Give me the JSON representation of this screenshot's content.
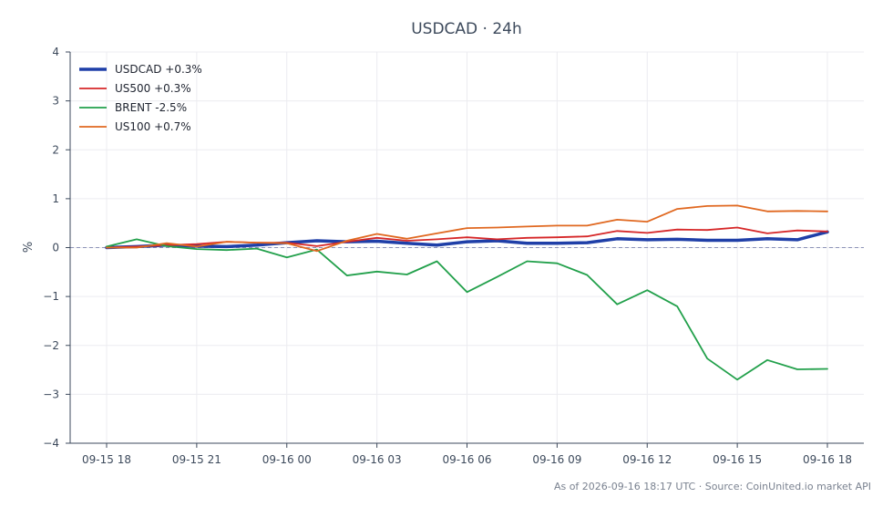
{
  "chart_data": {
    "type": "line",
    "title": "USDCAD · 24h",
    "ylabel": "%",
    "xlabel": "",
    "ylim": [
      -4,
      4
    ],
    "yticks": [
      4,
      3,
      2,
      1,
      0,
      -1,
      -2,
      -3,
      -4
    ],
    "ytick_labels": [
      "4",
      "3",
      "2",
      "1",
      "0",
      "−1",
      "−2",
      "−3",
      "−4"
    ],
    "x": [
      "09-15 18:00",
      "09-15 19:00",
      "09-15 20:00",
      "09-15 21:00",
      "09-15 22:00",
      "09-15 23:00",
      "09-16 00:00",
      "09-16 01:00",
      "09-16 02:00",
      "09-16 03:00",
      "09-16 04:00",
      "09-16 05:00",
      "09-16 06:00",
      "09-16 07:00",
      "09-16 08:00",
      "09-16 09:00",
      "09-16 10:00",
      "09-16 11:00",
      "09-16 12:00",
      "09-16 13:00",
      "09-16 14:00",
      "09-16 15:00",
      "09-16 16:00",
      "09-16 17:00",
      "09-16 18:00"
    ],
    "xtick_labels": [
      "09-15 18",
      "09-15 21",
      "09-16 00",
      "09-16 03",
      "09-16 06",
      "09-16 09",
      "09-16 12",
      "09-16 15",
      "09-16 18"
    ],
    "xtick_index": [
      0,
      3,
      6,
      9,
      12,
      15,
      18,
      21,
      24
    ],
    "zero_line": true,
    "grid": true,
    "legend_position": "top-left",
    "series": [
      {
        "name": "USDCAD +0.3%",
        "color": "#1f3fa8",
        "width": 3.5,
        "values": [
          0.0,
          0.02,
          0.05,
          0.03,
          0.02,
          0.05,
          0.1,
          0.14,
          0.12,
          0.13,
          0.09,
          0.05,
          0.12,
          0.14,
          0.09,
          0.09,
          0.1,
          0.18,
          0.16,
          0.17,
          0.15,
          0.15,
          0.18,
          0.16,
          0.32
        ]
      },
      {
        "name": "US500 +0.3%",
        "color": "#d62728",
        "width": 1.8,
        "values": [
          0.0,
          0.02,
          0.05,
          0.07,
          0.12,
          0.1,
          0.1,
          0.03,
          0.12,
          0.2,
          0.14,
          0.17,
          0.21,
          0.17,
          0.2,
          0.21,
          0.23,
          0.34,
          0.3,
          0.37,
          0.36,
          0.41,
          0.29,
          0.35,
          0.33
        ]
      },
      {
        "name": "BRENT -2.5%",
        "color": "#22a04b",
        "width": 1.8,
        "values": [
          0.02,
          0.17,
          0.03,
          -0.03,
          -0.05,
          -0.02,
          -0.2,
          -0.04,
          -0.57,
          -0.49,
          -0.55,
          -0.28,
          -0.91,
          -0.6,
          -0.28,
          -0.32,
          -0.56,
          -1.16,
          -0.87,
          -1.2,
          -2.27,
          -2.7,
          -2.3,
          -2.49,
          -2.48
        ]
      },
      {
        "name": "US100 +0.7%",
        "color": "#e06820",
        "width": 1.8,
        "values": [
          0.0,
          0.0,
          0.09,
          0.02,
          0.12,
          0.1,
          0.09,
          -0.07,
          0.14,
          0.28,
          0.18,
          0.29,
          0.4,
          0.41,
          0.43,
          0.45,
          0.45,
          0.57,
          0.53,
          0.79,
          0.85,
          0.86,
          0.74,
          0.75,
          0.74
        ]
      }
    ],
    "footer": "As of 2026-09-16 18:17 UTC · Source: CoinUnited.io market API"
  }
}
